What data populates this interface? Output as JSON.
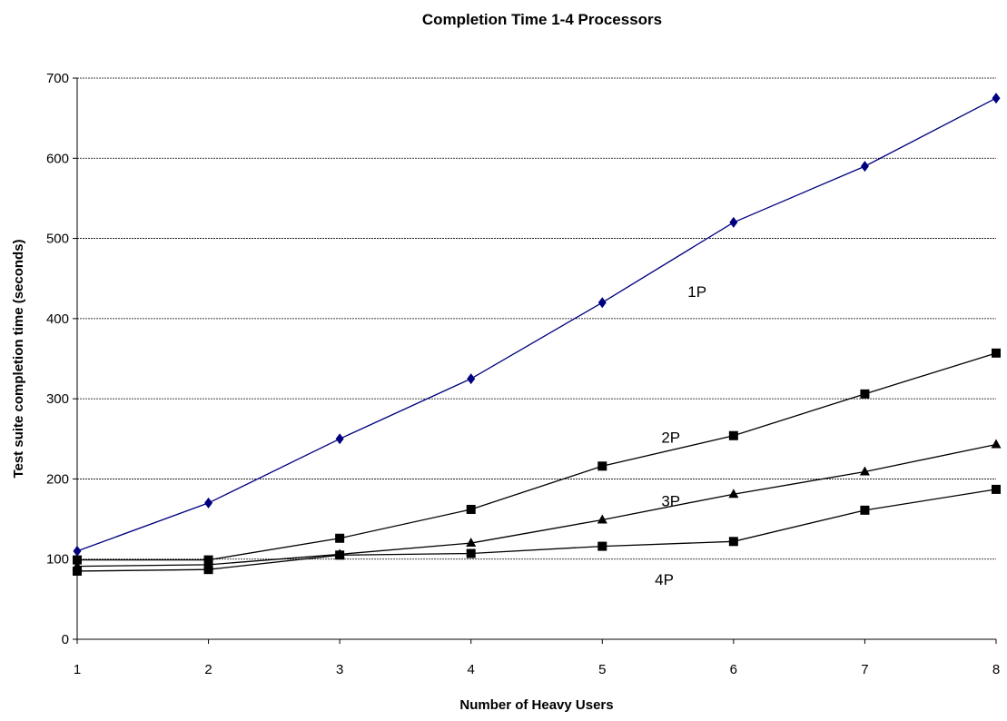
{
  "chart_data": {
    "type": "line",
    "title": "Completion Time 1-4 Processors",
    "xlabel": "Number of Heavy Users",
    "ylabel": "Test suite completion time (seconds)",
    "x": [
      1,
      2,
      3,
      4,
      5,
      6,
      7,
      8
    ],
    "xlim": [
      1,
      8
    ],
    "ylim": [
      0,
      700
    ],
    "yticks": [
      0,
      100,
      200,
      300,
      400,
      500,
      600,
      700
    ],
    "grid": {
      "horizontal": true,
      "vertical": false
    },
    "legend": "none",
    "series": [
      {
        "name": "1P",
        "values": [
          110,
          170,
          250,
          325,
          420,
          520,
          590,
          675
        ],
        "color": "#00007f",
        "marker": "diamond"
      },
      {
        "name": "2P",
        "values": [
          99,
          99,
          126,
          162,
          216,
          254,
          306,
          357
        ],
        "color": "#000000",
        "marker": "square"
      },
      {
        "name": "3P",
        "values": [
          91,
          93,
          106,
          120,
          149,
          181,
          209,
          243
        ],
        "color": "#000000",
        "marker": "triangle"
      },
      {
        "name": "4P",
        "values": [
          85,
          87,
          105,
          107,
          116,
          122,
          161,
          187
        ],
        "color": "#000000",
        "marker": "square"
      }
    ]
  }
}
